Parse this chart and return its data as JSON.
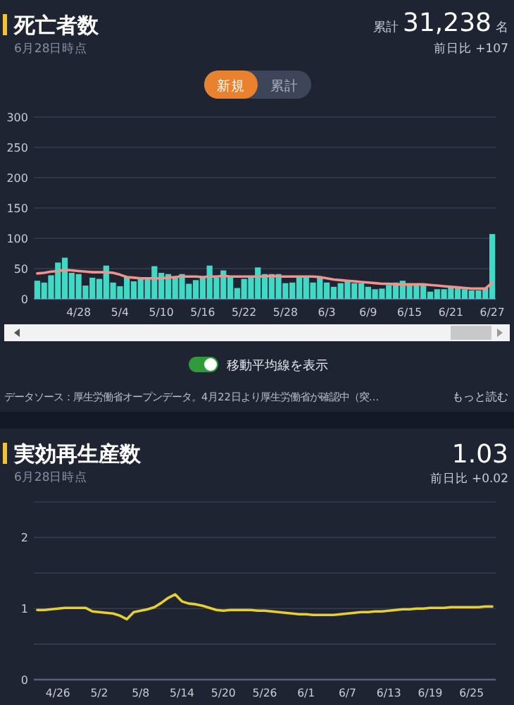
{
  "chart_data": [
    {
      "type": "bar",
      "title": "死亡者数",
      "subtitle": "6月28日時点",
      "annotations": [
        "累計",
        "31,238",
        "名",
        "前日比 +107",
        "新規",
        "累計",
        "移動平均線を表示",
        "データソース：厚生労働省オープンデータ。4月22日より厚生労働省が確認中（突…",
        "もっと読む"
      ],
      "categories": [
        null,
        null,
        null,
        null,
        null,
        null,
        "4/28",
        null,
        null,
        null,
        null,
        null,
        "5/4",
        null,
        null,
        null,
        null,
        null,
        "5/10",
        null,
        null,
        null,
        null,
        null,
        "5/16",
        null,
        null,
        null,
        null,
        null,
        "5/22",
        null,
        null,
        null,
        null,
        null,
        "5/28",
        null,
        null,
        null,
        null,
        null,
        "6/3",
        null,
        null,
        null,
        null,
        null,
        "6/9",
        null,
        null,
        null,
        null,
        null,
        "6/15",
        null,
        null,
        null,
        null,
        null,
        "6/21",
        null,
        null,
        null,
        null,
        null,
        "6/27"
      ],
      "series": [
        {
          "color": "#40d9c5",
          "values": [
            30,
            27,
            39,
            60,
            68,
            43,
            41,
            22,
            35,
            33,
            55,
            27,
            21,
            37,
            29,
            34,
            34,
            54,
            43,
            41,
            35,
            41,
            25,
            31,
            35,
            55,
            35,
            47,
            37,
            18,
            33,
            35,
            52,
            41,
            41,
            41,
            26,
            27,
            37,
            37,
            27,
            35,
            27,
            20,
            26,
            29,
            26,
            26,
            20,
            16,
            17,
            23,
            27,
            30,
            25,
            23,
            23,
            12,
            16,
            16,
            20,
            20,
            16,
            14,
            14,
            18,
            107
          ]
        },
        {
          "type": "line",
          "color": "#f2928c",
          "values": [
            42,
            43,
            45,
            46,
            48,
            47,
            46,
            45,
            44,
            44,
            44,
            43,
            40,
            36,
            35,
            34,
            34,
            34,
            34,
            35,
            36,
            37,
            37,
            37,
            36,
            37,
            37,
            38,
            37,
            37,
            37,
            37,
            37,
            37,
            38,
            37,
            37,
            37,
            37,
            37,
            37,
            36,
            34,
            32,
            31,
            30,
            29,
            28,
            27,
            26,
            25,
            25,
            24,
            24,
            24,
            24,
            24,
            23,
            22,
            21,
            20,
            19,
            18,
            17,
            17,
            17,
            27
          ]
        }
      ],
      "ylim": [
        0,
        300
      ],
      "yticks": [
        0,
        50,
        100,
        150,
        200,
        250,
        300
      ],
      "grid": "y"
    },
    {
      "type": "line",
      "title": "実効再生産数",
      "subtitle": "6月28日時点",
      "annotations": [
        "1.03",
        "前日比 +0.02"
      ],
      "categories": [
        null,
        null,
        null,
        "4/26",
        null,
        null,
        null,
        null,
        null,
        "5/2",
        null,
        null,
        null,
        null,
        null,
        "5/8",
        null,
        null,
        null,
        null,
        null,
        "5/14",
        null,
        null,
        null,
        null,
        null,
        "5/20",
        null,
        null,
        null,
        null,
        null,
        "5/26",
        null,
        null,
        null,
        null,
        null,
        "6/1",
        null,
        null,
        null,
        null,
        null,
        "6/7",
        null,
        null,
        null,
        null,
        null,
        "6/13",
        null,
        null,
        null,
        null,
        null,
        "6/19",
        null,
        null,
        null,
        null,
        null,
        "6/25",
        null,
        null,
        null
      ],
      "series": [
        {
          "color": "#e6cf2e",
          "values": [
            0.98,
            0.98,
            0.99,
            1.0,
            1.01,
            1.01,
            1.01,
            1.01,
            0.96,
            0.95,
            0.94,
            0.93,
            0.9,
            0.85,
            0.95,
            0.97,
            0.99,
            1.02,
            1.08,
            1.15,
            1.2,
            1.1,
            1.07,
            1.06,
            1.04,
            1.01,
            0.98,
            0.97,
            0.98,
            0.98,
            0.98,
            0.98,
            0.97,
            0.97,
            0.96,
            0.95,
            0.94,
            0.93,
            0.92,
            0.92,
            0.91,
            0.91,
            0.91,
            0.91,
            0.92,
            0.93,
            0.94,
            0.95,
            0.95,
            0.96,
            0.96,
            0.97,
            0.98,
            0.99,
            0.99,
            1.0,
            1.0,
            1.01,
            1.01,
            1.01,
            1.02,
            1.02,
            1.02,
            1.02,
            1.02,
            1.03,
            1.03
          ]
        }
      ],
      "ylim": [
        0,
        2.5
      ],
      "yticks": [
        0,
        {
          "value": 0.5,
          "label": null
        },
        1,
        {
          "value": 1.5,
          "label": null
        },
        2,
        {
          "value": 2.5,
          "label": null
        }
      ],
      "grid": "y"
    }
  ]
}
